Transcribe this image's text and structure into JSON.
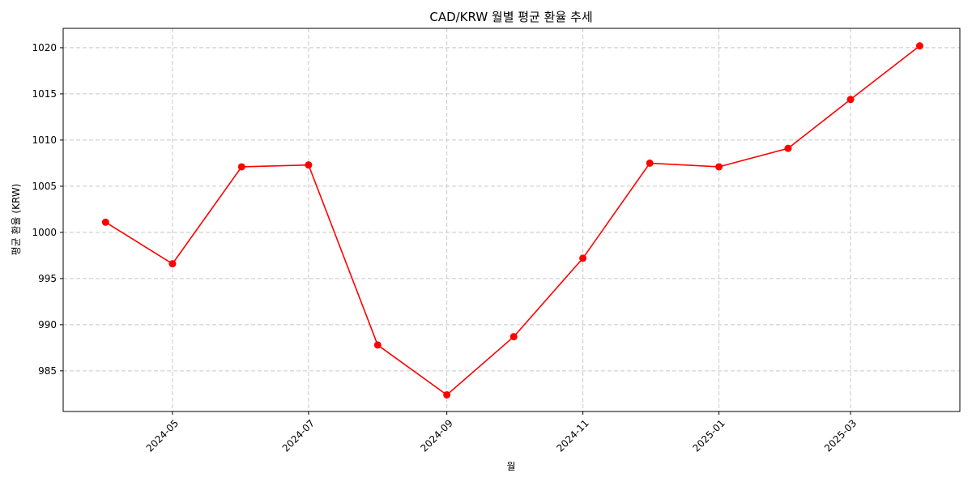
{
  "chart_data": {
    "type": "line",
    "title": "CAD/KRW 월별 평균 환율 추세",
    "xlabel": "월",
    "ylabel": "평균 환율 (KRW)",
    "x": [
      "2024-04-01",
      "2024-05-01",
      "2024-06-01",
      "2024-07-01",
      "2024-08-01",
      "2024-09-01",
      "2024-10-01",
      "2024-11-01",
      "2024-12-01",
      "2025-01-01",
      "2025-02-01",
      "2025-03-01",
      "2025-04-01"
    ],
    "values": [
      1001.1,
      996.6,
      1007.1,
      1007.3,
      987.8,
      982.4,
      988.7,
      997.2,
      1007.5,
      1007.1,
      1009.1,
      1014.4,
      1020.2
    ],
    "x_ticks": [
      "2024-05",
      "2024-07",
      "2024-09",
      "2024-11",
      "2025-01",
      "2025-03"
    ],
    "x_tick_dates": [
      "2024-05-01",
      "2024-07-01",
      "2024-09-01",
      "2024-11-01",
      "2025-01-01",
      "2025-03-01"
    ],
    "y_ticks": [
      985,
      990,
      995,
      1000,
      1005,
      1010,
      1015,
      1020
    ],
    "xlim": [
      "2024-03-13",
      "2025-04-19"
    ],
    "ylim": [
      980.6,
      1022.1
    ],
    "grid": true,
    "line_color": "#ff0000",
    "marker_color": "#ff0000"
  }
}
